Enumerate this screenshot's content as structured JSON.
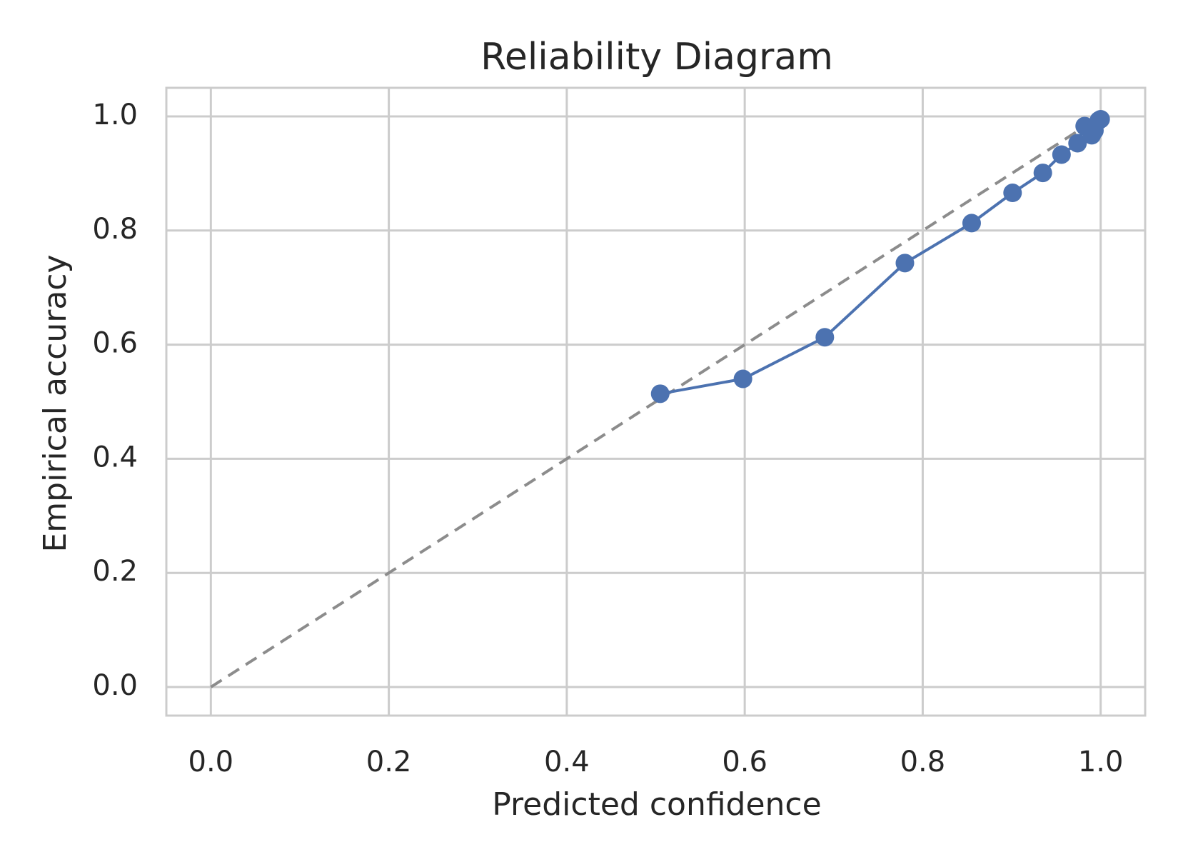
{
  "chart_data": {
    "type": "line",
    "title": "Reliability Diagram",
    "xlabel": "Predicted confidence",
    "ylabel": "Empirical accuracy",
    "xlim": [
      -0.05,
      1.05
    ],
    "ylim": [
      -0.05,
      1.05
    ],
    "x_ticks": [
      0.0,
      0.2,
      0.4,
      0.6,
      0.8,
      1.0
    ],
    "y_ticks": [
      0.0,
      0.2,
      0.4,
      0.6,
      0.8,
      1.0
    ],
    "x_tick_labels": [
      "0.0",
      "0.2",
      "0.4",
      "0.6",
      "0.8",
      "1.0"
    ],
    "y_tick_labels": [
      "0.0",
      "0.2",
      "0.4",
      "0.6",
      "0.8",
      "1.0"
    ],
    "grid": true,
    "series": [
      {
        "style": "line-with-markers",
        "color": "#4c72b0",
        "x": [
          0.505,
          0.598,
          0.69,
          0.78,
          0.855,
          0.901,
          0.935,
          0.956,
          0.974,
          0.982,
          0.99,
          0.993,
          0.998,
          1.0
        ],
        "y": [
          0.514,
          0.54,
          0.613,
          0.743,
          0.813,
          0.866,
          0.901,
          0.933,
          0.953,
          0.983,
          0.967,
          0.975,
          0.993,
          0.995
        ]
      }
    ],
    "reference_line": {
      "style": "dashed",
      "color": "#8c8c8c",
      "x": [
        0.0,
        1.0
      ],
      "y": [
        0.0,
        1.0
      ]
    }
  }
}
